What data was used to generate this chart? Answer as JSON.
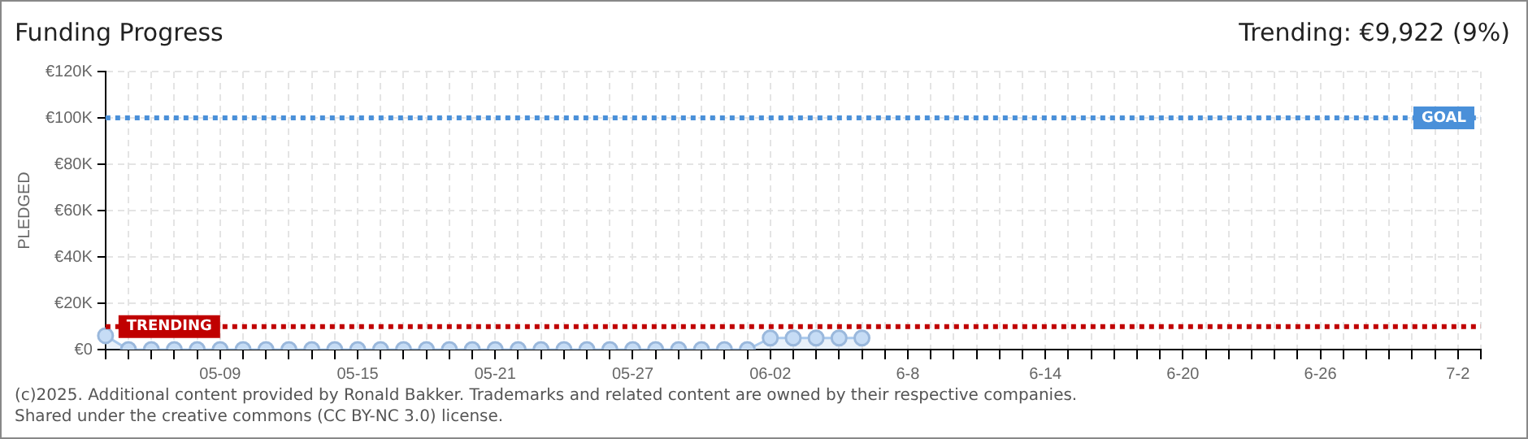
{
  "chart_data": {
    "type": "area",
    "title": "Funding Progress",
    "subtitle": "Trending: €9,922 (9%)",
    "ylabel": "PLEDGED",
    "categories": [
      null,
      null,
      null,
      null,
      null,
      "05-09",
      null,
      null,
      null,
      null,
      null,
      "05-15",
      null,
      null,
      null,
      null,
      null,
      "05-21",
      null,
      null,
      null,
      null,
      null,
      "05-27",
      null,
      null,
      null,
      null,
      null,
      "06-02",
      null,
      null,
      null,
      null,
      null,
      "6-8",
      null,
      null,
      null,
      null,
      null,
      "6-14",
      null,
      null,
      null,
      null,
      null,
      "6-20",
      null,
      null,
      null,
      null,
      null,
      "6-26",
      null,
      null,
      null,
      null,
      null,
      "7-2",
      null
    ],
    "series": [
      {
        "color": "#a8c8ec",
        "values": [
          6000,
          0,
          0,
          0,
          0,
          0,
          0,
          0,
          0,
          0,
          0,
          0,
          0,
          0,
          0,
          0,
          0,
          0,
          0,
          0,
          0,
          0,
          0,
          0,
          0,
          0,
          0,
          0,
          0,
          5000,
          5000,
          5000,
          5000,
          5000,
          null,
          null,
          null,
          null,
          null,
          null,
          null,
          null,
          null,
          null,
          null,
          null,
          null,
          null,
          null,
          null,
          null,
          null,
          null,
          null,
          null,
          null,
          null,
          null,
          null,
          null,
          null
        ]
      }
    ],
    "ylim": [
      0,
      120000
    ],
    "yticks": [
      {
        "value": 0,
        "label": "€0"
      },
      {
        "value": 20000,
        "label": "€20K"
      },
      {
        "value": 40000,
        "label": "€40K"
      },
      {
        "value": 60000,
        "label": "€60K"
      },
      {
        "value": 80000,
        "label": "€80K"
      },
      {
        "value": 100000,
        "label": "€100K"
      },
      {
        "value": 120000,
        "label": "€120K"
      }
    ],
    "ref_lines": [
      {
        "axis": "y",
        "value": 100000,
        "label": "GOAL",
        "color": "#4a90d9",
        "line_style": "dotted"
      },
      {
        "axis": "y",
        "value": 9922,
        "label": "TRENDING",
        "color": "#c00000",
        "line_style": "dotted"
      }
    ],
    "annotations": [
      "(c)2025. Additional content provided by Ronald Bakker. Trademarks and related content are owned by their respective companies.",
      "Shared under the creative commons (CC BY-NC 3.0) license."
    ],
    "grid": true,
    "legend": false,
    "marker": "circle",
    "line_style": "solid"
  }
}
